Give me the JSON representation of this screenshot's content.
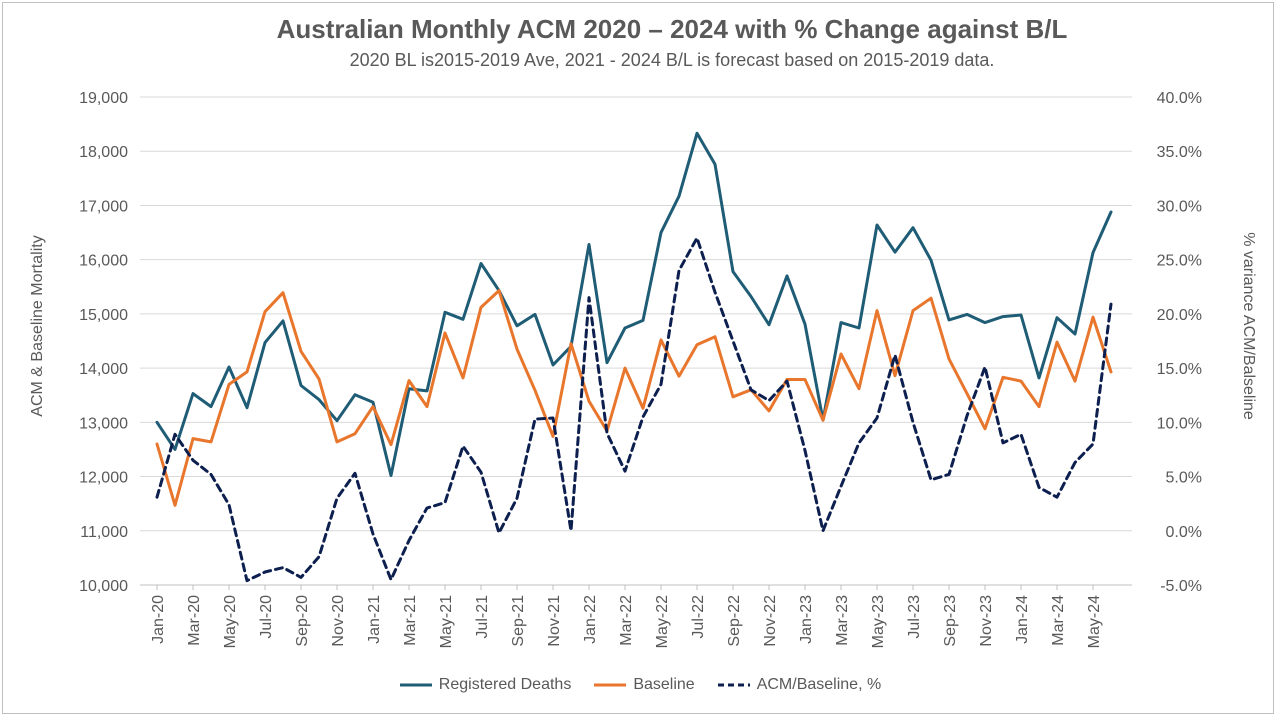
{
  "chart_data": {
    "type": "line",
    "title": "Australian Monthly ACM 2020 – 2024 with % Change against B/L",
    "subtitle": "2020 BL is2015-2019 Ave, 2021 - 2024 B/L is forecast based on 2015-2019 data.",
    "ylabel": "ACM & Baseline Mortality",
    "y2label": "% variance ACM/Balseline",
    "ylim": [
      10000,
      19000
    ],
    "y2lim": [
      -5.0,
      40.0
    ],
    "yticks": [
      "10,000",
      "11,000",
      "12,000",
      "13,000",
      "14,000",
      "15,000",
      "16,000",
      "17,000",
      "18,000",
      "19,000"
    ],
    "y2ticks": [
      "-5.0%",
      "0.0%",
      "5.0%",
      "10.0%",
      "15.0%",
      "20.0%",
      "25.0%",
      "30.0%",
      "35.0%",
      "40.0%"
    ],
    "x": [
      "Jan-20",
      "Feb-20",
      "Mar-20",
      "Apr-20",
      "May-20",
      "Jun-20",
      "Jul-20",
      "Aug-20",
      "Sep-20",
      "Oct-20",
      "Nov-20",
      "Dec-20",
      "Jan-21",
      "Feb-21",
      "Mar-21",
      "Apr-21",
      "May-21",
      "Jun-21",
      "Jul-21",
      "Aug-21",
      "Sep-21",
      "Oct-21",
      "Nov-21",
      "Dec-21",
      "Jan-22",
      "Feb-22",
      "Mar-22",
      "Apr-22",
      "May-22",
      "Jun-22",
      "Jul-22",
      "Aug-22",
      "Sep-22",
      "Oct-22",
      "Nov-22",
      "Dec-22",
      "Jan-23",
      "Feb-23",
      "Mar-23",
      "Apr-23",
      "May-23",
      "Jun-23",
      "Jul-23",
      "Aug-23",
      "Sep-23",
      "Oct-23",
      "Nov-23",
      "Dec-23",
      "Jan-24",
      "Feb-24",
      "Mar-24",
      "Apr-24",
      "May-24",
      "Jun-24"
    ],
    "x_tick_labels": [
      "Jan-20",
      "Mar-20",
      "May-20",
      "Jul-20",
      "Sep-20",
      "Nov-20",
      "Jan-21",
      "Mar-21",
      "May-21",
      "Jul-21",
      "Sep-21",
      "Nov-21",
      "Jan-22",
      "Mar-22",
      "May-22",
      "Jul-22",
      "Sep-22",
      "Nov-22",
      "Jan-23",
      "Mar-23",
      "May-23",
      "Jul-23",
      "Sep-23",
      "Nov-23",
      "Jan-24",
      "Mar-24",
      "May-24"
    ],
    "grid": true,
    "legend_position": "bottom",
    "series": [
      {
        "name": "Registered Deaths",
        "axis": "left",
        "color": "#1f5c75",
        "dash": "solid",
        "values": [
          13000,
          12500,
          13530,
          13290,
          14020,
          13270,
          14470,
          14870,
          13680,
          13420,
          13030,
          13510,
          13370,
          12020,
          13620,
          13580,
          15030,
          14900,
          15930,
          15430,
          14780,
          14990,
          14060,
          14400,
          16280,
          14100,
          14740,
          14880,
          16500,
          17170,
          18330,
          17760,
          15780,
          15320,
          14800,
          15700,
          14810,
          13040,
          14840,
          14740,
          16640,
          16140,
          16590,
          15990,
          14890,
          14990,
          14840,
          14950,
          14980,
          13820,
          14930,
          14630,
          16130,
          16880
        ]
      },
      {
        "name": "Baseline",
        "axis": "left",
        "color": "#e8762c",
        "dash": "solid",
        "values": [
          12600,
          11470,
          12700,
          12640,
          13700,
          13930,
          15040,
          15390,
          14310,
          13800,
          12640,
          12790,
          13290,
          12590,
          13770,
          13290,
          14650,
          13820,
          15120,
          15430,
          14350,
          13590,
          12740,
          14450,
          13390,
          12840,
          14000,
          13260,
          14520,
          13850,
          14430,
          14580,
          13470,
          13600,
          13210,
          13790,
          13790,
          13040,
          14260,
          13620,
          15060,
          13860,
          15060,
          15290,
          14170,
          13530,
          12880,
          13830,
          13760,
          13290,
          14480,
          13760,
          14940,
          13930
        ]
      },
      {
        "name": "ACM/Baseline, %",
        "axis": "right",
        "color": "#0d1f4f",
        "dash": "dashed",
        "values": [
          3.1,
          8.9,
          6.5,
          5.2,
          2.4,
          -4.6,
          -3.8,
          -3.4,
          -4.3,
          -2.4,
          3.0,
          5.3,
          -0.3,
          -4.5,
          -0.9,
          2.1,
          2.6,
          7.8,
          5.4,
          -0.2,
          3.0,
          10.3,
          10.4,
          0.0,
          21.5,
          9.0,
          5.5,
          10.5,
          13.5,
          24.0,
          27.0,
          22.0,
          17.5,
          13.0,
          12.0,
          13.8,
          7.4,
          0.0,
          4.1,
          8.1,
          10.4,
          16.2,
          10.0,
          4.7,
          5.2,
          10.6,
          15.1,
          8.1,
          8.9,
          4.0,
          3.1,
          6.3,
          8.0,
          20.9
        ]
      }
    ]
  }
}
